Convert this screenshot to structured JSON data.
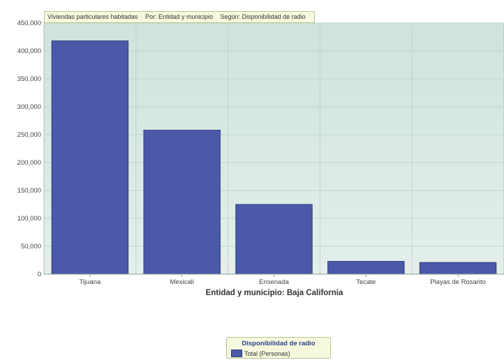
{
  "title_parts": [
    "Viviendas particulares habitadas",
    "Por: Entidad y municipio",
    "Según: Disponibilidad de radio"
  ],
  "chart_data": {
    "type": "bar",
    "xlabel": "Entidad y municipio: Baja California",
    "ylabel": "",
    "categories": [
      "Tijuana",
      "Mexicali",
      "Ensenada",
      "Tecate",
      "Playas de Rosarito"
    ],
    "series": [
      {
        "name": "Total (Personas)",
        "values": [
          418000,
          258000,
          125000,
          23000,
          21000
        ]
      }
    ],
    "ylim": [
      0,
      450000
    ],
    "yticks": [
      0,
      50000,
      100000,
      150000,
      200000,
      250000,
      300000,
      350000,
      400000,
      450000
    ],
    "ytick_labels": [
      "0",
      "50,000",
      "100,000",
      "150,000",
      "200,000",
      "250,000",
      "300,000",
      "350,000",
      "400,000",
      "450,000"
    ],
    "grid": true,
    "legend_placement": "bottom-center",
    "legend_title": "Disponibilidad de radio",
    "colors": {
      "bar": "#4b5aa8",
      "bar_edge": "#2d3a80",
      "plot_bg": "#d7e8e3",
      "grid": "#c2d3cf"
    }
  }
}
